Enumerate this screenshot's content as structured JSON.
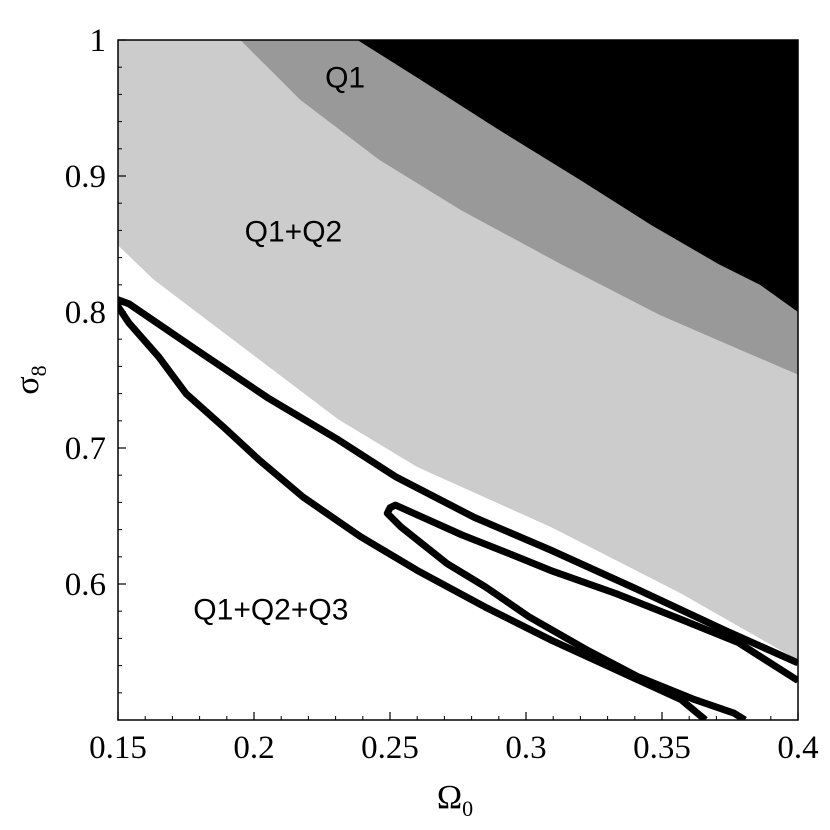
{
  "chart_data": {
    "type": "area",
    "xlabel": "Ω",
    "xlabel_sub": "0",
    "ylabel": "σ",
    "ylabel_sub": "8",
    "xlim": [
      0.15,
      0.4
    ],
    "ylim": [
      0.5,
      1.0
    ],
    "xticks": [
      "0.15",
      "0.2",
      "0.25",
      "0.3",
      "0.35",
      "0.4"
    ],
    "yticks": [
      "0.6",
      "0.7",
      "0.8",
      "0.9",
      "1"
    ],
    "grid": false,
    "colors": {
      "Q1_region": "#000000",
      "Q1_band": "#999999",
      "Q1+Q2_region": "#cccccc",
      "contour": "#000000"
    },
    "regions": [
      {
        "label": "Q1",
        "color": "#000000",
        "lower_boundary": [
          [
            0.238,
            1.0
          ],
          [
            0.261,
            0.971
          ],
          [
            0.29,
            0.934
          ],
          [
            0.32,
            0.897
          ],
          [
            0.346,
            0.864
          ],
          [
            0.371,
            0.835
          ],
          [
            0.386,
            0.82
          ],
          [
            0.4,
            0.8
          ]
        ]
      },
      {
        "color": "#999999",
        "lower_boundary": [
          [
            0.195,
            1.0
          ],
          [
            0.217,
            0.956
          ],
          [
            0.246,
            0.912
          ],
          [
            0.276,
            0.875
          ],
          [
            0.313,
            0.835
          ],
          [
            0.349,
            0.798
          ],
          [
            0.379,
            0.772
          ],
          [
            0.4,
            0.754
          ]
        ]
      },
      {
        "label": "Q1+Q2",
        "color": "#cccccc",
        "lower_boundary": [
          [
            0.15,
            0.849
          ],
          [
            0.163,
            0.824
          ],
          [
            0.196,
            0.774
          ],
          [
            0.231,
            0.721
          ],
          [
            0.26,
            0.686
          ],
          [
            0.309,
            0.642
          ],
          [
            0.357,
            0.593
          ],
          [
            0.4,
            0.544
          ]
        ]
      }
    ],
    "contours": [
      {
        "label": "Q1+Q2+Q3",
        "points": [
          [
            0.366,
            0.5
          ],
          [
            0.357,
            0.515
          ],
          [
            0.333,
            0.537
          ],
          [
            0.309,
            0.559
          ],
          [
            0.285,
            0.583
          ],
          [
            0.26,
            0.61
          ],
          [
            0.239,
            0.635
          ],
          [
            0.218,
            0.664
          ],
          [
            0.202,
            0.691
          ],
          [
            0.189,
            0.715
          ],
          [
            0.175,
            0.74
          ],
          [
            0.165,
            0.767
          ],
          [
            0.154,
            0.792
          ],
          [
            0.15,
            0.804
          ],
          [
            0.15,
            0.809
          ],
          [
            0.154,
            0.806
          ],
          [
            0.179,
            0.772
          ],
          [
            0.205,
            0.737
          ],
          [
            0.231,
            0.706
          ],
          [
            0.252,
            0.679
          ],
          [
            0.281,
            0.649
          ],
          [
            0.309,
            0.625
          ],
          [
            0.341,
            0.596
          ],
          [
            0.373,
            0.566
          ],
          [
            0.4,
            0.542
          ]
        ]
      },
      {
        "points": [
          [
            0.3805,
            0.5
          ],
          [
            0.3765,
            0.505
          ],
          [
            0.362,
            0.515
          ],
          [
            0.341,
            0.532
          ],
          [
            0.322,
            0.552
          ],
          [
            0.301,
            0.576
          ],
          [
            0.285,
            0.598
          ],
          [
            0.271,
            0.615
          ],
          [
            0.254,
            0.642
          ],
          [
            0.249,
            0.652
          ],
          [
            0.25,
            0.656
          ],
          [
            0.252,
            0.658
          ],
          [
            0.2765,
            0.636
          ],
          [
            0.293,
            0.623
          ],
          [
            0.309,
            0.61
          ],
          [
            0.333,
            0.593
          ],
          [
            0.357,
            0.574
          ],
          [
            0.378,
            0.557
          ],
          [
            0.4,
            0.529
          ]
        ]
      }
    ],
    "annotations": [
      {
        "text": "Q1",
        "x": 0.2335,
        "y": 0.973
      },
      {
        "text": "Q1+Q2",
        "x": 0.2145,
        "y": 0.86
      },
      {
        "text": "Q1+Q2+Q3",
        "x": 0.2062,
        "y": 0.582
      }
    ]
  }
}
